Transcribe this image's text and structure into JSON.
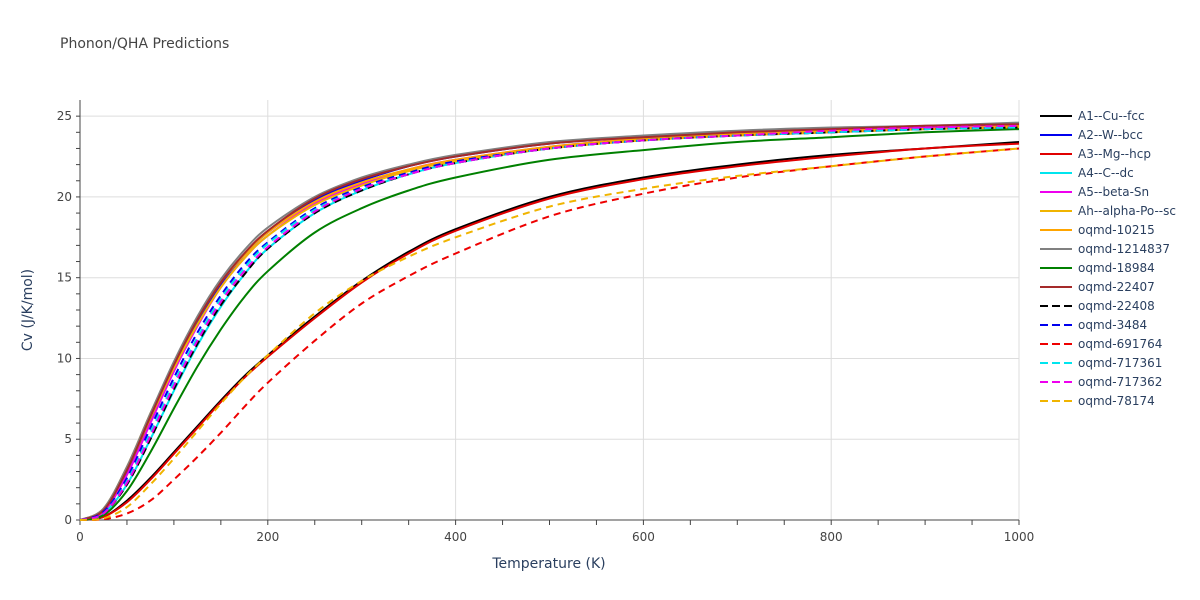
{
  "chart_data": {
    "type": "line",
    "title": "Phonon/QHA Predictions",
    "xlabel": "Temperature (K)",
    "ylabel": "Cv (J/K/mol)",
    "xlim": [
      0,
      1000
    ],
    "ylim": [
      0,
      26
    ],
    "xticks": [
      0,
      200,
      400,
      600,
      800,
      1000
    ],
    "yticks": [
      0,
      5,
      10,
      15,
      20,
      25
    ],
    "grid": true,
    "legend_position": "right",
    "series": [
      {
        "name": "A1--Cu--fcc",
        "color": "#000000",
        "dash": false,
        "x": [
          0,
          25,
          50,
          75,
          100,
          125,
          150,
          175,
          200,
          250,
          300,
          350,
          400,
          500,
          600,
          700,
          800,
          900,
          1000
        ],
        "y": [
          0,
          0.2,
          1.2,
          2.6,
          4.2,
          5.8,
          7.4,
          8.9,
          10.2,
          12.6,
          14.8,
          16.6,
          18.0,
          20.0,
          21.2,
          22.0,
          22.6,
          23.0,
          23.4
        ]
      },
      {
        "name": "A2--W--bcc",
        "color": "#0000ee",
        "dash": false,
        "x": [
          0,
          25,
          50,
          75,
          100,
          125,
          150,
          175,
          200,
          250,
          300,
          350,
          400,
          500,
          600,
          700,
          800,
          900,
          1000
        ],
        "y": [
          0,
          0.6,
          3.0,
          6.2,
          9.4,
          12.2,
          14.6,
          16.4,
          17.8,
          19.8,
          21.0,
          21.9,
          22.5,
          23.3,
          23.7,
          24.0,
          24.2,
          24.3,
          24.5
        ]
      },
      {
        "name": "A3--Mg--hcp",
        "color": "#e00000",
        "dash": false,
        "x": [
          0,
          25,
          50,
          75,
          100,
          125,
          150,
          175,
          200,
          250,
          300,
          350,
          400,
          500,
          600,
          700,
          800,
          900,
          1000
        ],
        "y": [
          0,
          0.2,
          1.1,
          2.5,
          4.1,
          5.7,
          7.3,
          8.8,
          10.1,
          12.5,
          14.7,
          16.5,
          17.9,
          19.9,
          21.1,
          21.9,
          22.5,
          23.0,
          23.3
        ]
      },
      {
        "name": "A4--C--dc",
        "color": "#00e5ee",
        "dash": false,
        "x": [
          0,
          25,
          50,
          75,
          100,
          125,
          150,
          175,
          200,
          250,
          300,
          350,
          400,
          500,
          600,
          700,
          800,
          900,
          1000
        ],
        "y": [
          0,
          0.4,
          2.2,
          5.0,
          8.0,
          10.8,
          13.2,
          15.2,
          16.8,
          19.0,
          20.4,
          21.4,
          22.1,
          23.0,
          23.5,
          23.8,
          24.0,
          24.2,
          24.3
        ]
      },
      {
        "name": "A5--beta-Sn",
        "color": "#ee00ee",
        "dash": false,
        "x": [
          0,
          25,
          50,
          75,
          100,
          125,
          150,
          175,
          200,
          250,
          300,
          350,
          400,
          500,
          600,
          700,
          800,
          900,
          1000
        ],
        "y": [
          0,
          0.5,
          2.8,
          6.0,
          9.2,
          12.0,
          14.4,
          16.2,
          17.6,
          19.6,
          20.8,
          21.7,
          22.3,
          23.1,
          23.6,
          23.9,
          24.1,
          24.3,
          24.4
        ]
      },
      {
        "name": "Ah--alpha-Po--sc",
        "color": "#f0b400",
        "dash": false,
        "x": [
          0,
          25,
          50,
          75,
          100,
          125,
          150,
          175,
          200,
          250,
          300,
          350,
          400,
          500,
          600,
          700,
          800,
          900,
          1000
        ],
        "y": [
          0,
          0.6,
          3.1,
          6.3,
          9.4,
          12.1,
          14.4,
          16.2,
          17.6,
          19.5,
          20.7,
          21.6,
          22.2,
          23.0,
          23.5,
          23.8,
          24.0,
          24.2,
          24.3
        ]
      },
      {
        "name": "oqmd-10215",
        "color": "#ffa500",
        "dash": false,
        "x": [
          0,
          25,
          50,
          75,
          100,
          125,
          150,
          175,
          200,
          250,
          300,
          350,
          400,
          500,
          600,
          700,
          800,
          900,
          1000
        ],
        "y": [
          0,
          0.7,
          3.3,
          6.6,
          9.7,
          12.4,
          14.7,
          16.4,
          17.8,
          19.7,
          20.9,
          21.7,
          22.3,
          23.1,
          23.6,
          23.9,
          24.1,
          24.2,
          24.4
        ]
      },
      {
        "name": "oqmd-1214837",
        "color": "#808080",
        "dash": false,
        "x": [
          0,
          25,
          50,
          75,
          100,
          125,
          150,
          175,
          200,
          250,
          300,
          350,
          400,
          500,
          600,
          700,
          800,
          900,
          1000
        ],
        "y": [
          0,
          0.7,
          3.3,
          6.6,
          9.8,
          12.6,
          14.9,
          16.7,
          18.1,
          20.0,
          21.2,
          22.0,
          22.6,
          23.4,
          23.8,
          24.1,
          24.3,
          24.4,
          24.6
        ]
      },
      {
        "name": "oqmd-18984",
        "color": "#008000",
        "dash": false,
        "x": [
          0,
          25,
          50,
          75,
          100,
          125,
          150,
          175,
          200,
          250,
          300,
          350,
          400,
          500,
          600,
          700,
          800,
          900,
          1000
        ],
        "y": [
          0,
          0.3,
          1.8,
          4.2,
          6.9,
          9.5,
          11.8,
          13.8,
          15.4,
          17.8,
          19.3,
          20.4,
          21.2,
          22.3,
          22.9,
          23.4,
          23.7,
          24.0,
          24.2
        ]
      },
      {
        "name": "oqmd-22407",
        "color": "#a52a2a",
        "dash": false,
        "x": [
          0,
          25,
          50,
          75,
          100,
          125,
          150,
          175,
          200,
          250,
          300,
          350,
          400,
          500,
          600,
          700,
          800,
          900,
          1000
        ],
        "y": [
          0,
          0.6,
          3.1,
          6.4,
          9.6,
          12.4,
          14.7,
          16.5,
          17.9,
          19.9,
          21.1,
          21.9,
          22.5,
          23.3,
          23.7,
          24.0,
          24.2,
          24.4,
          24.5
        ]
      },
      {
        "name": "oqmd-22408",
        "color": "#000000",
        "dash": true,
        "x": [
          0,
          25,
          50,
          75,
          100,
          125,
          150,
          175,
          200,
          250,
          300,
          350,
          400,
          500,
          600,
          700,
          800,
          900,
          1000
        ],
        "y": [
          0,
          0.4,
          2.2,
          5.0,
          8.1,
          10.9,
          13.3,
          15.2,
          16.8,
          19.0,
          20.4,
          21.4,
          22.1,
          23.0,
          23.5,
          23.8,
          24.0,
          24.2,
          24.3
        ]
      },
      {
        "name": "oqmd-3484",
        "color": "#0000ee",
        "dash": true,
        "x": [
          0,
          25,
          50,
          75,
          100,
          125,
          150,
          175,
          200,
          250,
          300,
          350,
          400,
          500,
          600,
          700,
          800,
          900,
          1000
        ],
        "y": [
          0,
          0.5,
          2.6,
          5.7,
          8.8,
          11.6,
          13.9,
          15.8,
          17.2,
          19.3,
          20.6,
          21.5,
          22.2,
          23.0,
          23.5,
          23.8,
          24.0,
          24.2,
          24.3
        ]
      },
      {
        "name": "oqmd-691764",
        "color": "#ee0000",
        "dash": true,
        "x": [
          0,
          25,
          50,
          75,
          100,
          125,
          150,
          175,
          200,
          250,
          300,
          350,
          400,
          500,
          600,
          700,
          800,
          900,
          1000
        ],
        "y": [
          0,
          0.05,
          0.4,
          1.2,
          2.5,
          3.9,
          5.4,
          7.0,
          8.5,
          11.1,
          13.4,
          15.1,
          16.5,
          18.8,
          20.2,
          21.2,
          21.9,
          22.5,
          23.0
        ]
      },
      {
        "name": "oqmd-717361",
        "color": "#00e5ee",
        "dash": true,
        "x": [
          0,
          25,
          50,
          75,
          100,
          125,
          150,
          175,
          200,
          250,
          300,
          350,
          400,
          500,
          600,
          700,
          800,
          900,
          1000
        ],
        "y": [
          0,
          0.4,
          2.4,
          5.4,
          8.5,
          11.3,
          13.7,
          15.6,
          17.1,
          19.2,
          20.5,
          21.4,
          22.1,
          23.0,
          23.5,
          23.8,
          24.0,
          24.2,
          24.3
        ]
      },
      {
        "name": "oqmd-717362",
        "color": "#ee00ee",
        "dash": true,
        "x": [
          0,
          25,
          50,
          75,
          100,
          125,
          150,
          175,
          200,
          250,
          300,
          350,
          400,
          500,
          600,
          700,
          800,
          900,
          1000
        ],
        "y": [
          0,
          0.4,
          2.3,
          5.2,
          8.3,
          11.1,
          13.5,
          15.4,
          16.9,
          19.1,
          20.5,
          21.4,
          22.1,
          23.0,
          23.5,
          23.8,
          24.1,
          24.3,
          24.4
        ]
      },
      {
        "name": "oqmd-78174",
        "color": "#f0b400",
        "dash": true,
        "x": [
          0,
          25,
          50,
          75,
          100,
          125,
          150,
          175,
          200,
          250,
          300,
          350,
          400,
          500,
          600,
          700,
          800,
          900,
          1000
        ],
        "y": [
          0,
          0.1,
          0.8,
          2.2,
          3.8,
          5.5,
          7.2,
          8.8,
          10.2,
          12.8,
          14.8,
          16.3,
          17.5,
          19.4,
          20.5,
          21.3,
          21.9,
          22.5,
          23.0
        ]
      }
    ]
  }
}
